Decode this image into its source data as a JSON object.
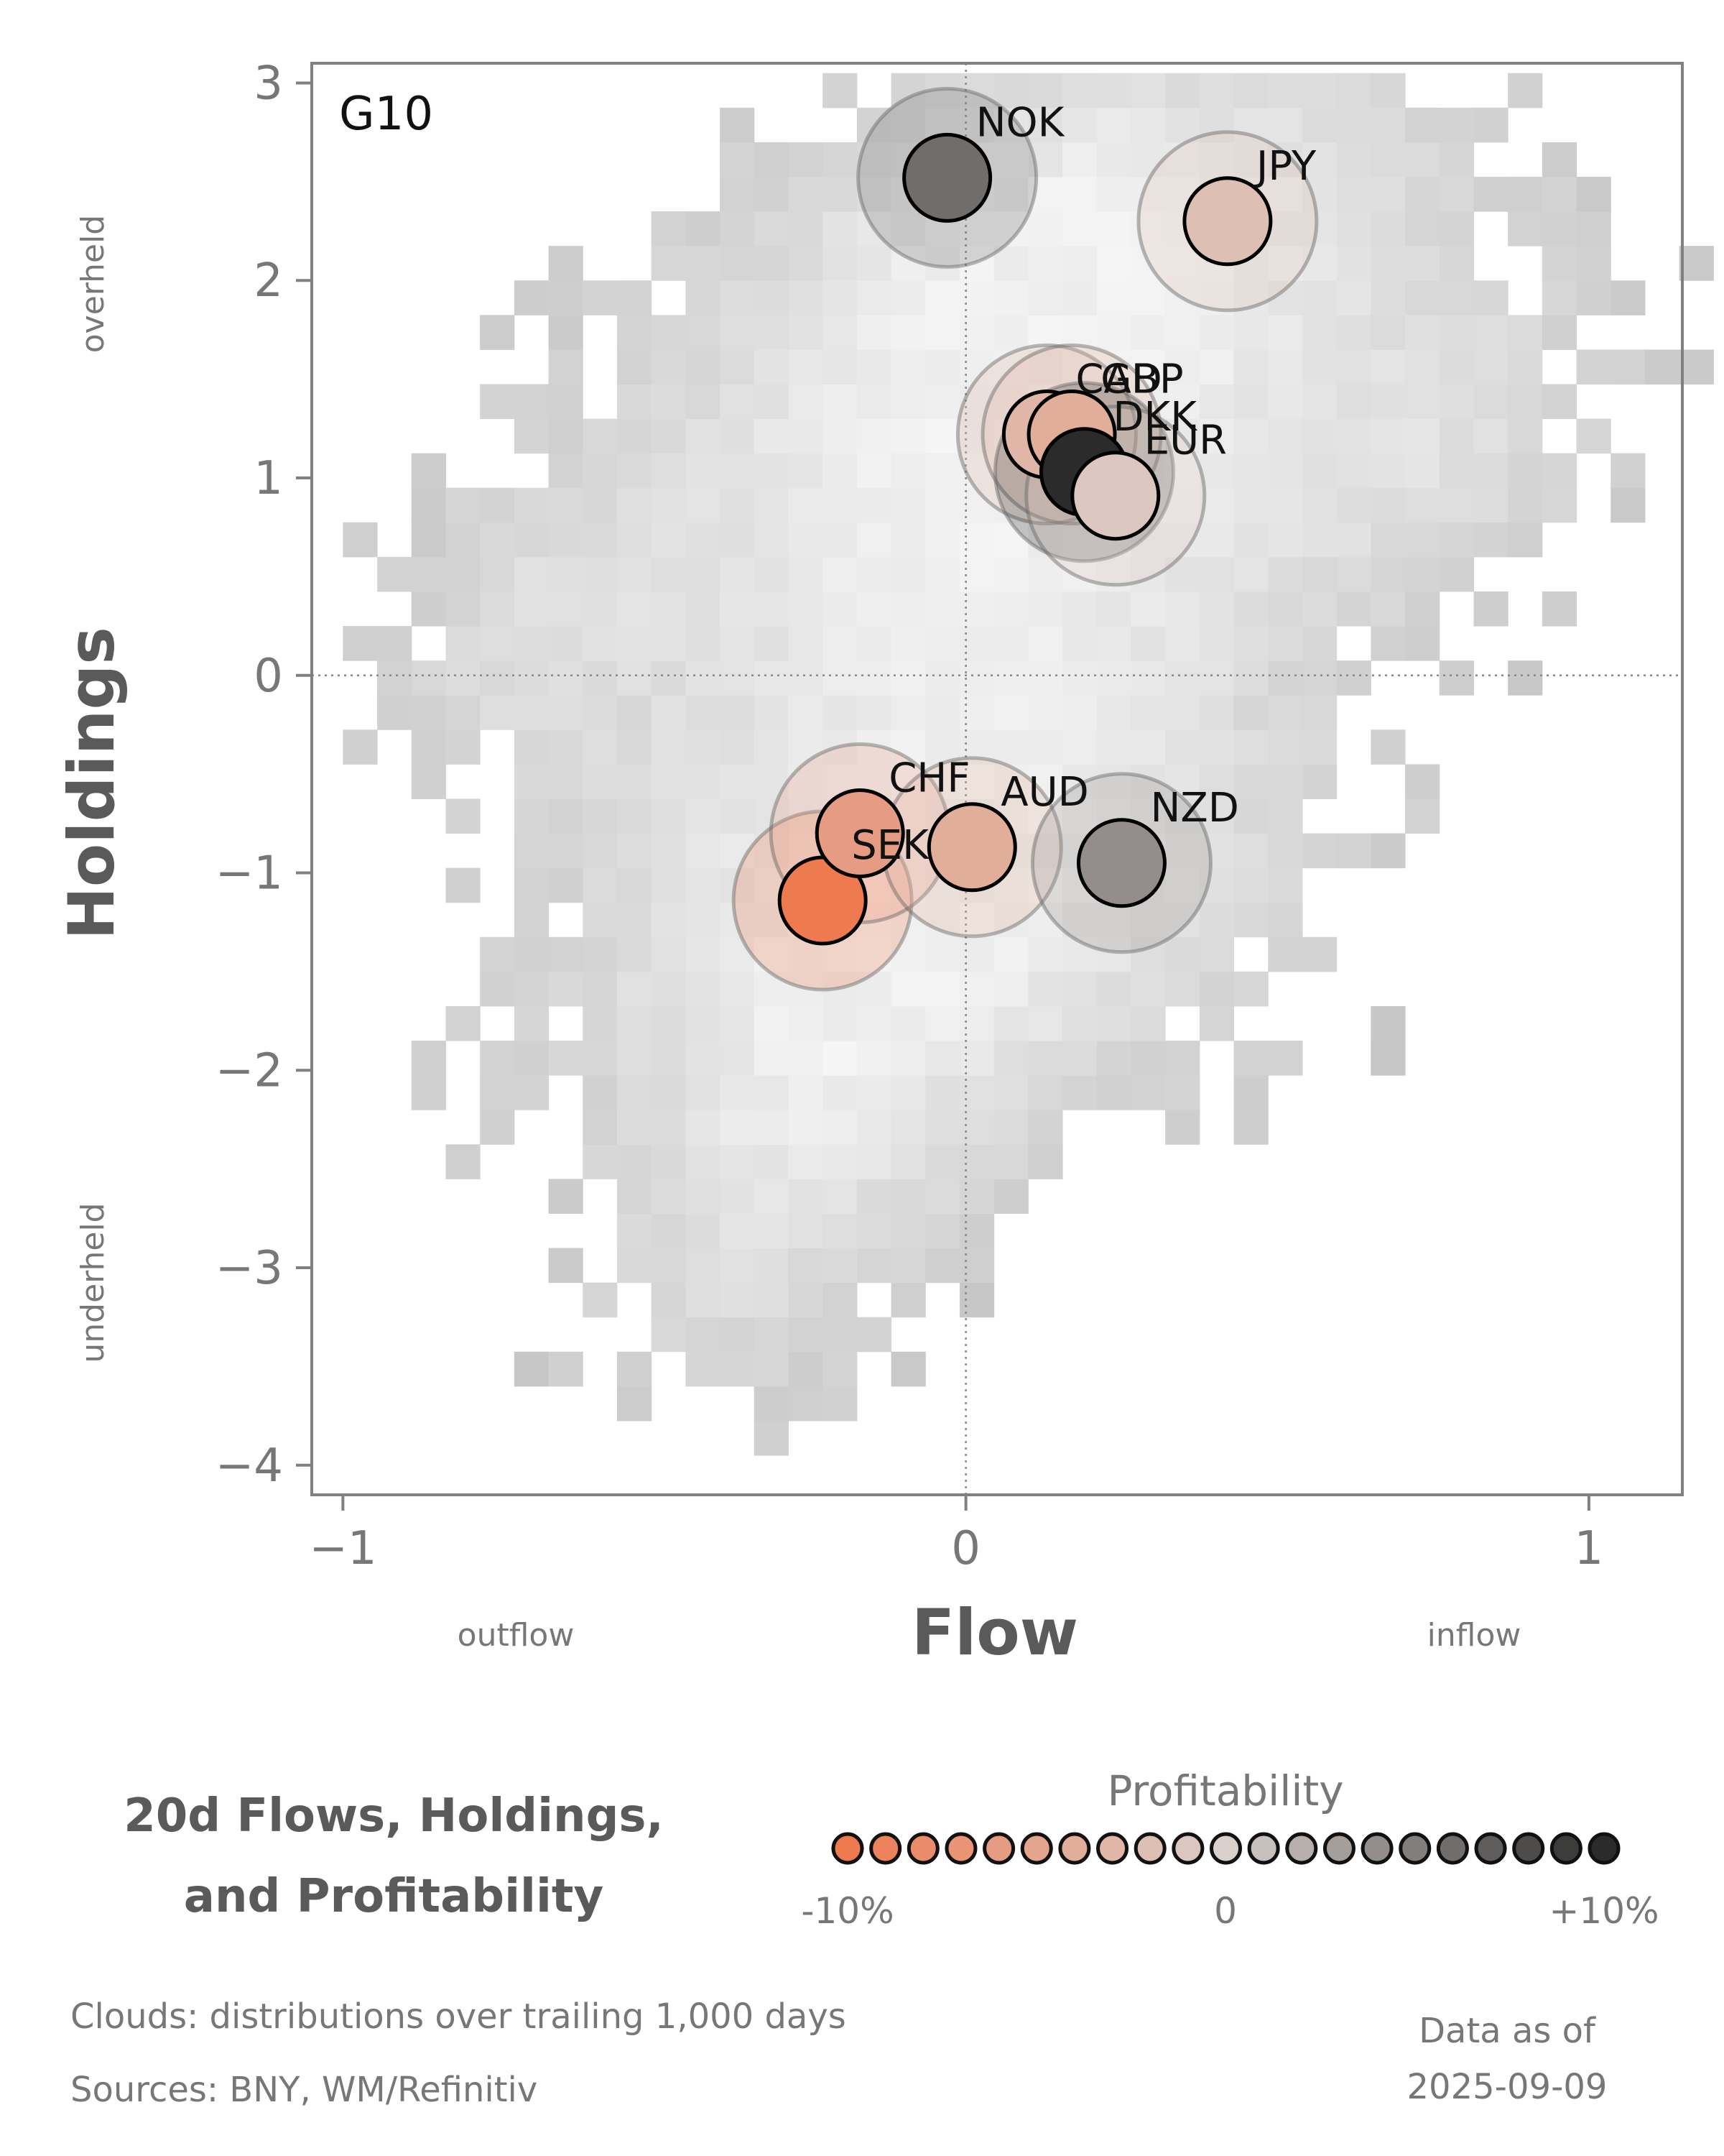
{
  "chart_data": {
    "type": "scatter",
    "title": "20d Flows, Holdings, and Profitability",
    "title_lines": [
      "20d Flows, Holdings,",
      "and Profitability"
    ],
    "panel_label": "G10",
    "xlabel": "Flow",
    "ylabel": "Holdings",
    "xlim": [
      -1.05,
      1.15
    ],
    "ylim": [
      -4.15,
      3.1
    ],
    "xticks": [
      -1,
      0,
      1
    ],
    "xtick_labels": [
      "−1",
      "0",
      "1"
    ],
    "yticks": [
      3,
      2,
      1,
      0,
      -1,
      -2,
      -3,
      -4
    ],
    "ytick_labels": [
      "3",
      "2",
      "1",
      "0",
      "−1",
      "−2",
      "−3",
      "−4"
    ],
    "x_side_labels": {
      "left": "outflow",
      "right": "inflow"
    },
    "y_side_labels": {
      "top": "overheld",
      "bottom": "underheld"
    },
    "reference_lines": {
      "x": 0,
      "y": 0
    },
    "points": [
      {
        "label": "NOK",
        "x": -0.03,
        "y": 2.52,
        "profitability": 6
      },
      {
        "label": "JPY",
        "x": 0.42,
        "y": 2.3,
        "profitability": -2
      },
      {
        "label": "CAD",
        "x": 0.13,
        "y": 1.22,
        "profitability": -3
      },
      {
        "label": "GBP",
        "x": 0.17,
        "y": 1.22,
        "profitability": -4
      },
      {
        "label": "DKK",
        "x": 0.19,
        "y": 1.03,
        "profitability": 10
      },
      {
        "label": "EUR",
        "x": 0.24,
        "y": 0.91,
        "profitability": -1
      },
      {
        "label": "SEK",
        "x": -0.23,
        "y": -1.14,
        "profitability": -10
      },
      {
        "label": "CHF",
        "x": -0.17,
        "y": -0.8,
        "profitability": -6
      },
      {
        "label": "AUD",
        "x": 0.01,
        "y": -0.87,
        "profitability": -4
      },
      {
        "label": "NZD",
        "x": 0.25,
        "y": -0.95,
        "profitability": 4
      }
    ],
    "color_scale": {
      "name": "Profitability",
      "min": -10,
      "max": 10,
      "tick_labels": [
        "-10%",
        "0",
        "+10%"
      ],
      "low_color": "#ee7a50",
      "mid_color": "#d9d0cc",
      "high_color": "#2b2b2b"
    },
    "background": "2D histogram clouds of historical flow/holdings (grey density)"
  },
  "footer": {
    "clouds_note": "Clouds:  distributions over trailing 1,000 days",
    "sources_note": "Sources:  BNY, WM/Refinitiv",
    "asof_label": "Data as of",
    "asof_date": "2025-09-09"
  },
  "colors": {
    "axis": "#808080",
    "text_muted": "#777777",
    "title_text": "#5a5a5a"
  }
}
